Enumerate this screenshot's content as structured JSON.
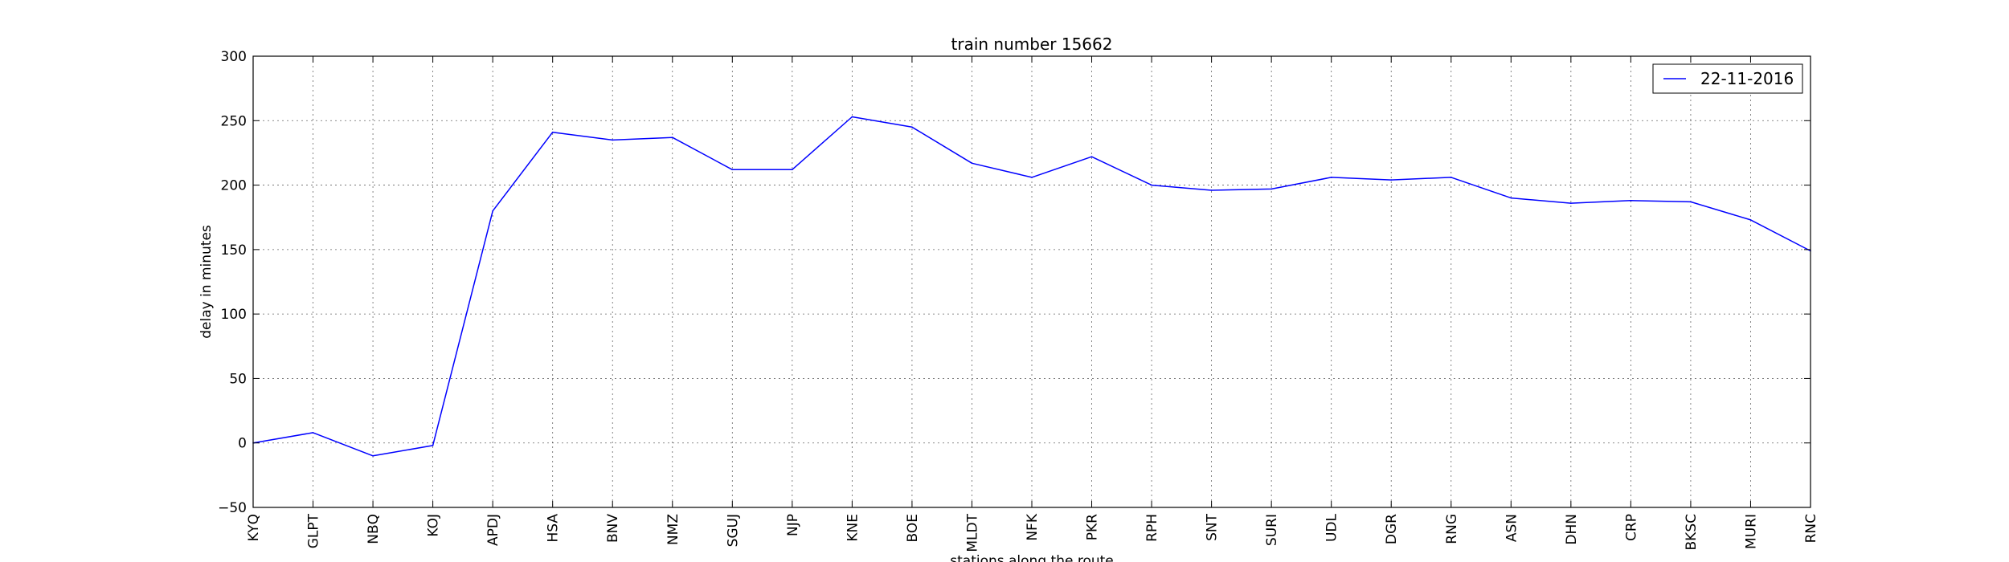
{
  "chart_data": {
    "type": "line",
    "title": "train number 15662",
    "xlabel": "stations along the route",
    "ylabel": "delay in minutes",
    "ylim": [
      -50,
      300
    ],
    "yticks": [
      -50,
      0,
      50,
      100,
      150,
      200,
      250,
      300
    ],
    "grid": true,
    "legend_position": "top-right",
    "categories": [
      "KYQ",
      "GLPT",
      "NBQ",
      "KOJ",
      "APDJ",
      "HSA",
      "BNV",
      "NMZ",
      "SGUJ",
      "NJP",
      "KNE",
      "BOE",
      "MLDT",
      "NFK",
      "PKR",
      "RPH",
      "SNT",
      "SURI",
      "UDL",
      "DGR",
      "RNG",
      "ASN",
      "DHN",
      "CRP",
      "BKSC",
      "MURI",
      "RNC"
    ],
    "series": [
      {
        "name": "22-11-2016",
        "color": "#0000ff",
        "values": [
          0,
          8,
          -10,
          -2,
          180,
          241,
          235,
          237,
          212,
          212,
          253,
          245,
          217,
          206,
          222,
          200,
          196,
          197,
          206,
          204,
          206,
          190,
          186,
          188,
          187,
          173,
          149
        ]
      }
    ]
  }
}
